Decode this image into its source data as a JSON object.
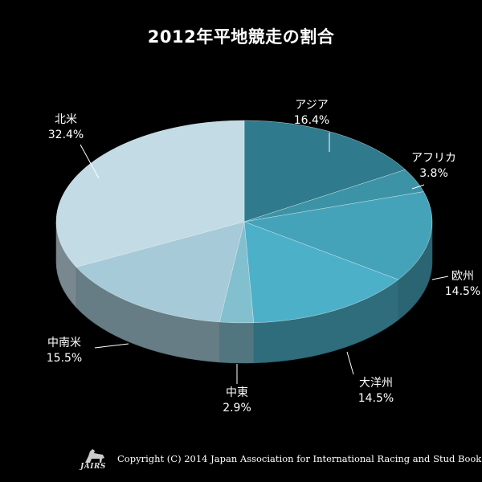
{
  "chart_data": {
    "type": "pie",
    "title": "2012年平地競走の割合",
    "slices": [
      {
        "label": "アジア",
        "value": 16.4,
        "value_label": "16.4%",
        "color": "#2f7a8c"
      },
      {
        "label": "アフリカ",
        "value": 3.8,
        "value_label": "3.8%",
        "color": "#3c93a6"
      },
      {
        "label": "欧州",
        "value": 14.5,
        "value_label": "14.5%",
        "color": "#45a3b9"
      },
      {
        "label": "大洋州",
        "value": 14.5,
        "value_label": "14.5%",
        "color": "#4cb0c8"
      },
      {
        "label": "中東",
        "value": 2.9,
        "value_label": "2.9%",
        "color": "#82bfcf"
      },
      {
        "label": "中南米",
        "value": 15.5,
        "value_label": "15.5%",
        "color": "#a6cad8"
      },
      {
        "label": "北米",
        "value": 32.4,
        "value_label": "32.4%",
        "color": "#c3dbe5"
      }
    ],
    "start": "12 o'clock",
    "direction": "clockwise",
    "style": "3d tilted pie"
  },
  "footer": {
    "logo_text": "JAIRS",
    "copyright": "Copyright (C) 2014 Japan Association for International Racing and Stud Book."
  }
}
